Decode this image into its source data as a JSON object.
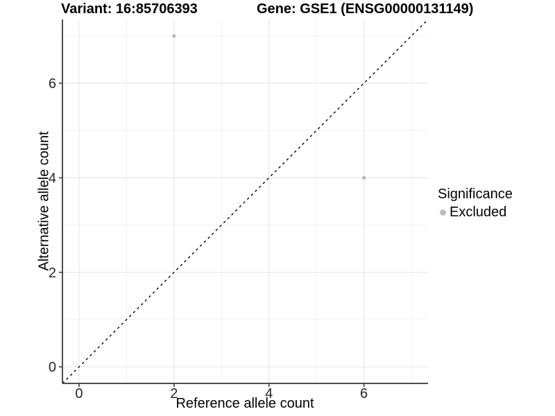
{
  "chart_data": {
    "type": "scatter",
    "title_left": "Variant: 16:85706393",
    "title_right": "Gene: GSE1 (ENSG00000131149)",
    "xlabel": "Reference allele count",
    "ylabel": "Alternative allele count",
    "xlim": [
      -0.35,
      7.35
    ],
    "ylim": [
      -0.35,
      7.35
    ],
    "xticks": [
      0,
      2,
      4,
      6
    ],
    "yticks": [
      0,
      2,
      4,
      6
    ],
    "xticks_minor": [
      1,
      3,
      5,
      7
    ],
    "yticks_minor": [
      1,
      3,
      5,
      7
    ],
    "grid": true,
    "identity_line": {
      "style": "dashed",
      "from": [
        -0.35,
        -0.35
      ],
      "to": [
        7.35,
        7.35
      ]
    },
    "series": [
      {
        "name": "Excluded",
        "color": "#bdbdbd",
        "points": [
          {
            "x": 2,
            "y": 7
          },
          {
            "x": 6,
            "y": 4
          }
        ]
      }
    ],
    "legend": {
      "title": "Significance",
      "position": "right",
      "entries": [
        {
          "label": "Excluded",
          "color": "#bdbdbd"
        }
      ]
    },
    "colors": {
      "background": "#ffffff",
      "grid_major": "#e4e4e4",
      "grid_minor": "#f0f0f0",
      "axis_line": "#4d4d4d",
      "tick_mark": "#4d4d4d",
      "tick_label": "#262626",
      "dashed_line": "#000000",
      "point": "#bdbdbd"
    }
  }
}
